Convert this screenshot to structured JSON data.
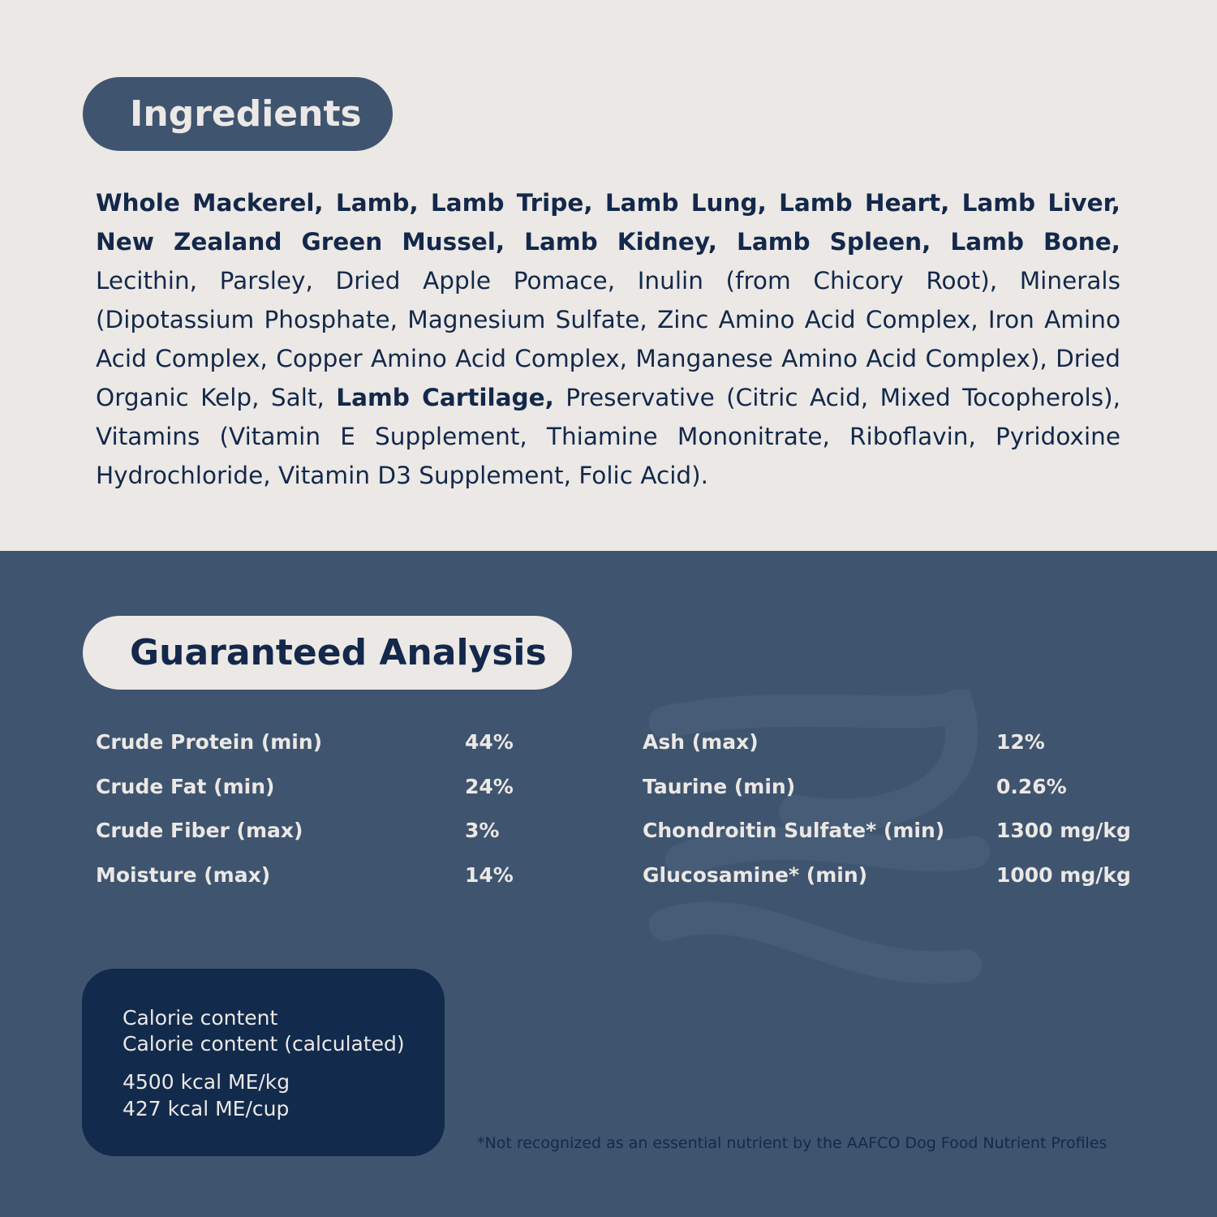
{
  "colors": {
    "cream": "#ebe8e5",
    "slate_blue": "#3f546f",
    "navy": "#13284a",
    "calorie_box": "#122a4c"
  },
  "ingredients": {
    "title": "Ingredients",
    "segments": [
      {
        "text": "Whole Mackerel, Lamb, Lamb Tripe, Lamb Lung, Lamb Heart, Lamb Liver, New Zealand Green Mussel, Lamb Kidney, Lamb Spleen, Lamb Bone,",
        "bold": true
      },
      {
        "text": " Lecithin, Parsley, Dried Apple Pomace, Inulin (from Chicory Root), Minerals (Dipotassium Phosphate, Magnesium Sulfate, Zinc Amino Acid Complex, Iron Amino Acid Complex, Copper Amino Acid Complex, Manganese Amino Acid Complex), Dried Organic Kelp, Salt, ",
        "bold": false
      },
      {
        "text": "Lamb Cartilage,",
        "bold": true
      },
      {
        "text": " Preservative (Citric Acid, Mixed Tocopherols), Vitamins (Vitamin E Supplement, Thiamine Mononitrate, Riboflavin, Pyridoxine Hydrochloride, Vitamin D3 Supplement, Folic Acid).",
        "bold": false
      }
    ]
  },
  "analysis": {
    "title": "Guaranteed Analysis",
    "left": [
      {
        "label": "Crude Protein (min)",
        "value": "44%"
      },
      {
        "label": "Crude Fat (min)",
        "value": "24%"
      },
      {
        "label": "Crude Fiber (max)",
        "value": "3%"
      },
      {
        "label": "Moisture (max)",
        "value": "14%"
      }
    ],
    "right": [
      {
        "label": "Ash (max)",
        "value": "12%"
      },
      {
        "label": "Taurine (min)",
        "value": "0.26%"
      },
      {
        "label": "Chondroitin Sulfate* (min)",
        "value": "1300 mg/kg"
      },
      {
        "label": "Glucosamine* (min)",
        "value": "1000 mg/kg"
      }
    ]
  },
  "calorie": {
    "line1": "Calorie content",
    "line2": "Calorie content (calculated)",
    "line3": "4500 kcal ME/kg",
    "line4": "427 kcal ME/cup"
  },
  "footnote": "*Not recognized as an essential nutrient by the AAFCO Dog Food Nutrient Profiles"
}
